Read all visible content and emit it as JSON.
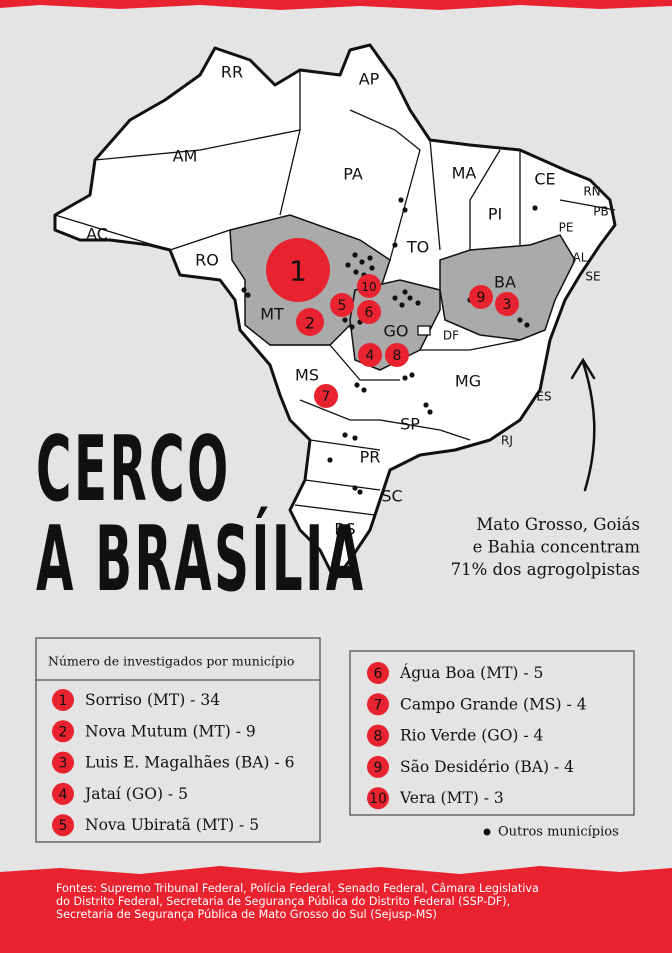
{
  "title": [
    "CERCO",
    "A BRASÍLIA"
  ],
  "map": {
    "states": [
      "RR",
      "AP",
      "AM",
      "PA",
      "MA",
      "CE",
      "RN",
      "PB",
      "PE",
      "AL",
      "SE",
      "PI",
      "AC",
      "RO",
      "TO",
      "BA",
      "MT",
      "GO",
      "DF",
      "MS",
      "MG",
      "ES",
      "SP",
      "RJ",
      "PR",
      "SC",
      "RS"
    ],
    "markers": [
      "1",
      "2",
      "3",
      "4",
      "5",
      "6",
      "7",
      "8",
      "9",
      "10"
    ]
  },
  "note": [
    "Mato Grosso, Goiás",
    "e Bahia concentram",
    "71% dos agrogolpistas"
  ],
  "legend": {
    "header": "Número de investigados por município",
    "items": [
      {
        "rank": "1",
        "label": "Sorriso (MT) - 34"
      },
      {
        "rank": "2",
        "label": "Nova Mutum (MT) - 9"
      },
      {
        "rank": "3",
        "label": "Luis E. Magalhães (BA) - 6"
      },
      {
        "rank": "4",
        "label": "Jataí (GO) - 5"
      },
      {
        "rank": "5",
        "label": "Nova Ubiratã (MT) - 5"
      },
      {
        "rank": "6",
        "label": "Água Boa (MT) - 5"
      },
      {
        "rank": "7",
        "label": "Campo Grande (MS) - 4"
      },
      {
        "rank": "8",
        "label": "Rio Verde (GO) - 4"
      },
      {
        "rank": "9",
        "label": "São Desidério (BA) - 4"
      },
      {
        "rank": "10",
        "label": "Vera (MT) - 3"
      }
    ],
    "other": "Outros municípios"
  },
  "sources": [
    "Fontes: Supremo Tribunal Federal, Polícia Federal, Senado Federal, Câmara Legislativa",
    "do Distrito Federal, Secretaria de Segurança Pública do Distrito Federal (SSP-DF),",
    "Secretaria de Segurança Pública de Mato Grosso do Sul (Sejusp-MS)"
  ]
}
